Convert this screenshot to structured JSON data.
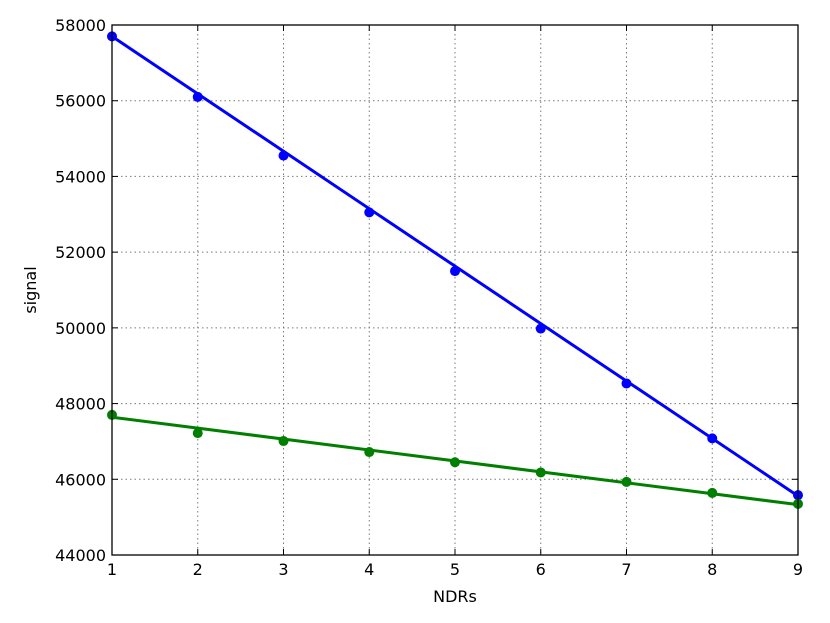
{
  "chart_data": {
    "type": "scatter",
    "title": "",
    "xlabel": "NDRs",
    "ylabel": "signal",
    "xlim": [
      1,
      9
    ],
    "ylim": [
      44000,
      58000
    ],
    "x_ticks": [
      1,
      2,
      3,
      4,
      5,
      6,
      7,
      8,
      9
    ],
    "y_ticks": [
      44000,
      46000,
      48000,
      50000,
      52000,
      54000,
      56000,
      58000
    ],
    "grid": true,
    "legend": "none",
    "series": [
      {
        "color": "#0000ff",
        "x": [
          1,
          2,
          3,
          4,
          5,
          6,
          7,
          8,
          9
        ],
        "y": [
          57700,
          56100,
          54550,
          53050,
          51500,
          49980,
          48530,
          47080,
          45580
        ],
        "fit": [
          [
            1,
            57700
          ],
          [
            9,
            45560
          ]
        ]
      },
      {
        "color": "#007f00",
        "x": [
          1,
          2,
          3,
          4,
          5,
          6,
          7,
          8,
          9
        ],
        "y": [
          47700,
          47220,
          47010,
          46720,
          46450,
          46180,
          45930,
          45640,
          45350
        ],
        "fit": [
          [
            1,
            47640
          ],
          [
            9,
            45330
          ]
        ]
      }
    ]
  }
}
